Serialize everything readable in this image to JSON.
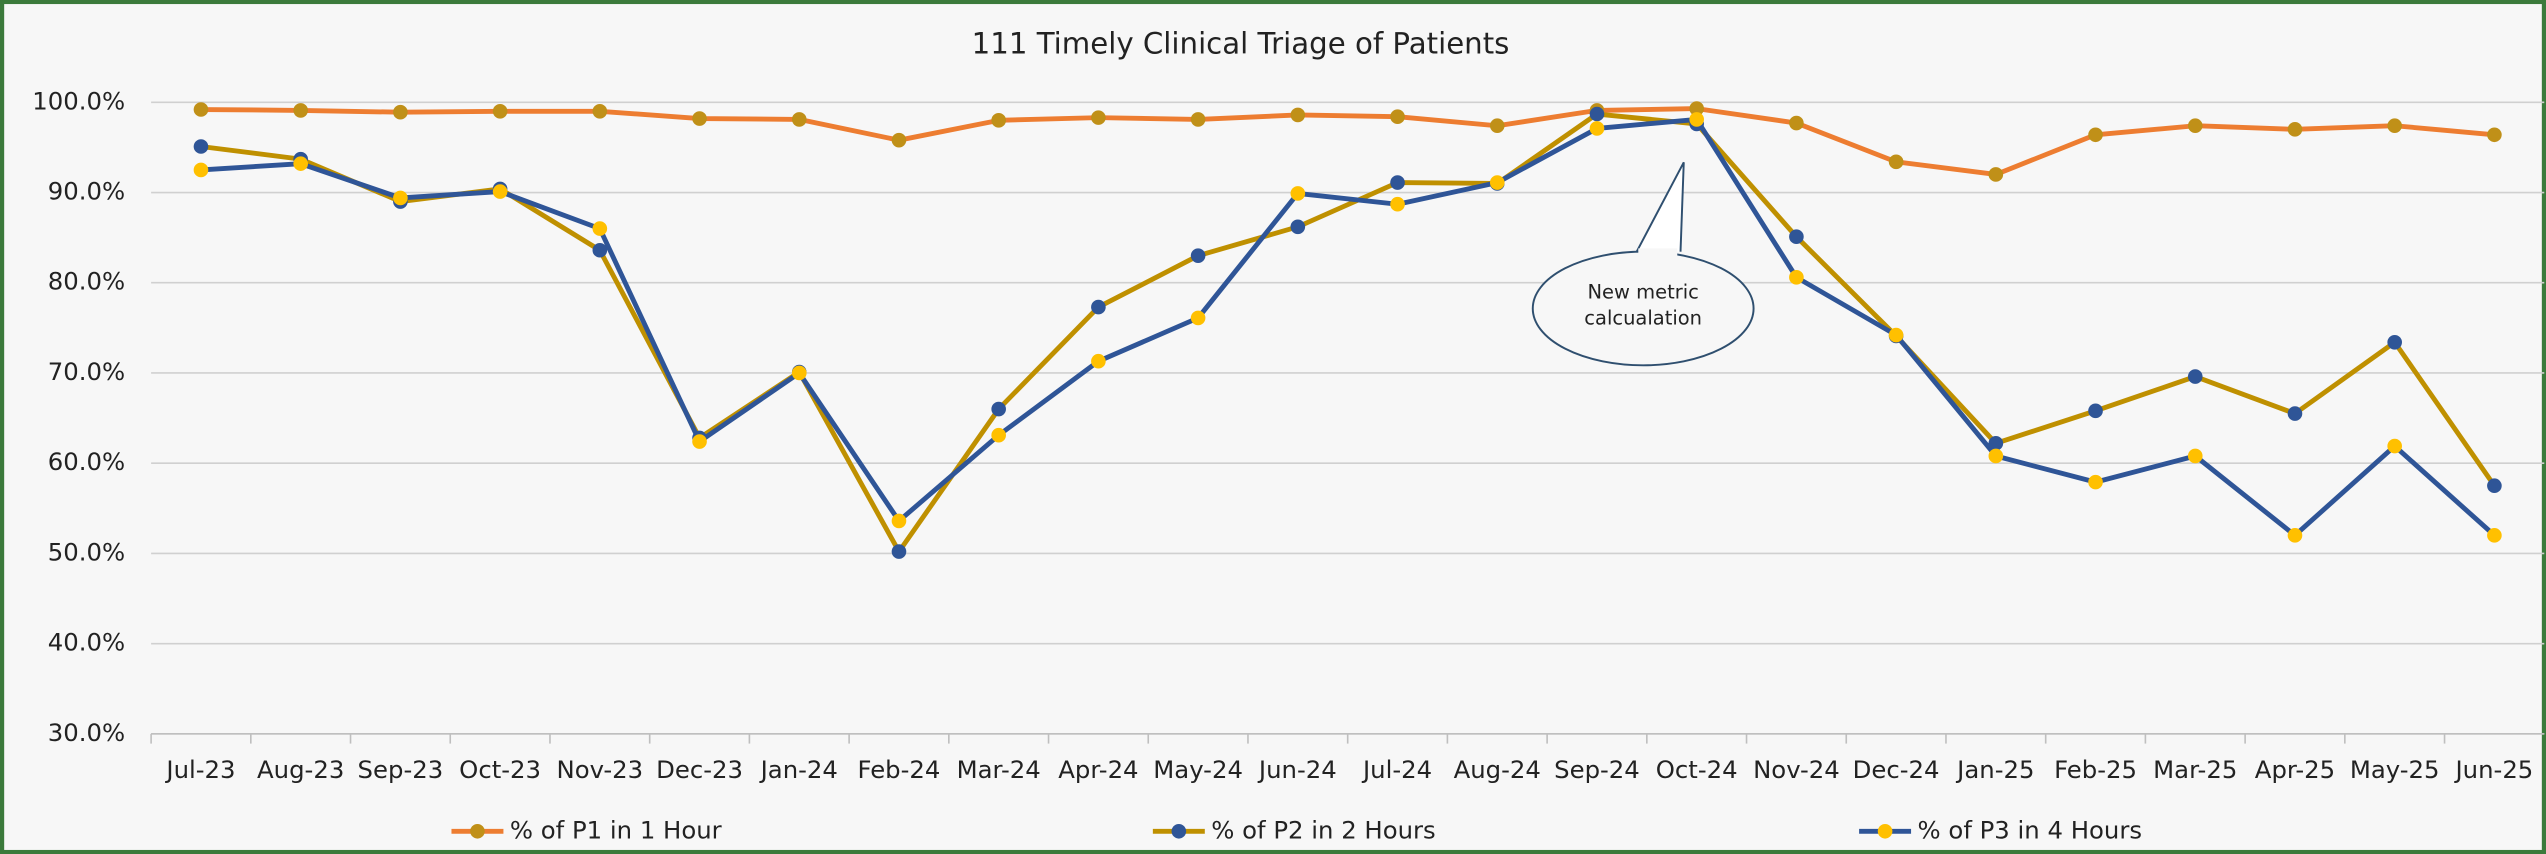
{
  "chart_data": {
    "type": "line",
    "title": "111 Timely Clinical Triage of Patients",
    "categories": [
      "Jul-23",
      "Aug-23",
      "Sep-23",
      "Oct-23",
      "Nov-23",
      "Dec-23",
      "Jan-24",
      "Feb-24",
      "Mar-24",
      "Apr-24",
      "May-24",
      "Jun-24",
      "Jul-24",
      "Aug-24",
      "Sep-24",
      "Oct-24",
      "Nov-24",
      "Dec-24",
      "Jan-25",
      "Feb-25",
      "Mar-25",
      "Apr-25",
      "May-25",
      "Jun-25"
    ],
    "series": [
      {
        "name": "% of P1 in 1 Hour",
        "color": "#ed7d31",
        "marker_color": "#c09018",
        "values": [
          99.2,
          99.1,
          98.9,
          99.0,
          99.0,
          98.2,
          98.1,
          95.8,
          98.0,
          98.3,
          98.1,
          98.6,
          98.4,
          97.4,
          99.1,
          99.3,
          97.7,
          93.4,
          92.0,
          96.4,
          97.4,
          97.0,
          97.4,
          96.4
        ]
      },
      {
        "name": "% of P2 in 2 Hours",
        "color": "#bf9000",
        "marker_color": "#2f5597",
        "values": [
          95.1,
          93.7,
          89.0,
          90.4,
          83.6,
          62.8,
          70.1,
          50.2,
          66.0,
          77.3,
          83.0,
          86.2,
          91.1,
          91.0,
          98.7,
          97.6,
          85.1,
          74.1,
          62.2,
          65.8,
          69.6,
          65.5,
          73.4,
          57.5
        ]
      },
      {
        "name": "% of P3 in 4 Hours",
        "color": "#2f5597",
        "marker_color": "#ffc000",
        "values": [
          92.5,
          93.2,
          89.4,
          90.1,
          86.0,
          62.4,
          70.0,
          53.6,
          63.1,
          71.3,
          76.1,
          89.9,
          88.7,
          91.1,
          97.1,
          98.1,
          80.6,
          74.2,
          60.8,
          57.9,
          60.8,
          52.0,
          61.9,
          52.0
        ]
      }
    ],
    "ylim": [
      30,
      100
    ],
    "yticks": [
      {
        "value": 30,
        "label": "30.0%"
      },
      {
        "value": 40,
        "label": "40.0%"
      },
      {
        "value": 50,
        "label": "50.0%"
      },
      {
        "value": 60,
        "label": "60.0%"
      },
      {
        "value": 70,
        "label": "70.0%"
      },
      {
        "value": 80,
        "label": "80.0%"
      },
      {
        "value": 90,
        "label": "90.0%"
      },
      {
        "value": 100,
        "label": "100.0%"
      }
    ],
    "grid": true,
    "legend": "bottom",
    "annotation": "New metric calcualation"
  }
}
